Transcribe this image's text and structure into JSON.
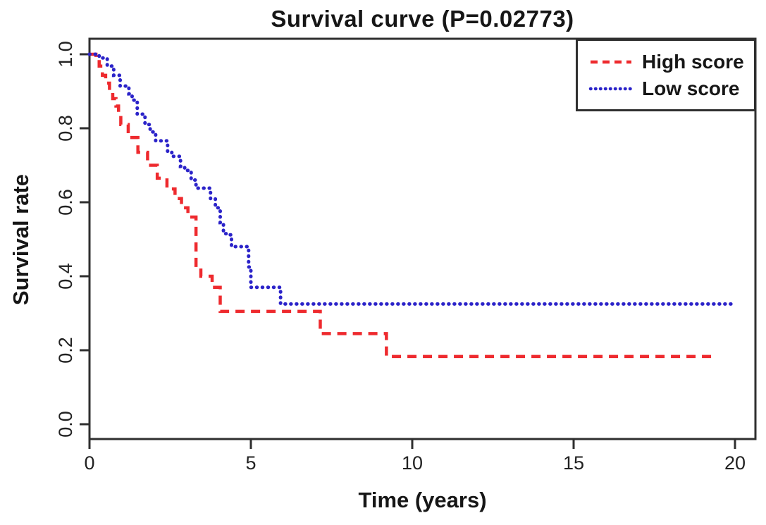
{
  "chart_data": {
    "type": "line",
    "subtype": "kaplan-meier-step-curves",
    "title": "Survival curve (P=0.02773)",
    "p_value": "0.02773",
    "xlabel": "Time (years)",
    "ylabel": "Survival rate",
    "xlim": [
      0,
      20.6
    ],
    "ylim": [
      0,
      1.04
    ],
    "grid": false,
    "legend_position": "top-right",
    "x_ticks": [
      {
        "value": 0,
        "label": "0"
      },
      {
        "value": 5,
        "label": "5"
      },
      {
        "value": 10,
        "label": "10"
      },
      {
        "value": 15,
        "label": "15"
      },
      {
        "value": 20,
        "label": "20"
      }
    ],
    "y_ticks": [
      {
        "value": 0.0,
        "label": "0.0"
      },
      {
        "value": 0.2,
        "label": "0.2"
      },
      {
        "value": 0.4,
        "label": "0.4"
      },
      {
        "value": 0.6,
        "label": "0.6"
      },
      {
        "value": 0.8,
        "label": "0.8"
      },
      {
        "value": 1.0,
        "label": "1.0"
      }
    ],
    "series": [
      {
        "name": "High score",
        "color": "#ee2a2e",
        "line_style": "dashed",
        "end_time": 19.4,
        "points": [
          [
            0,
            1.0
          ],
          [
            0.2,
            0.99
          ],
          [
            0.3,
            0.968
          ],
          [
            0.4,
            0.943
          ],
          [
            0.5,
            0.922
          ],
          [
            0.62,
            0.9
          ],
          [
            0.72,
            0.88
          ],
          [
            0.82,
            0.86
          ],
          [
            0.9,
            0.838
          ],
          [
            0.97,
            0.81
          ],
          [
            1.2,
            0.775
          ],
          [
            1.5,
            0.735
          ],
          [
            1.8,
            0.7
          ],
          [
            2.1,
            0.665
          ],
          [
            2.4,
            0.636
          ],
          [
            2.65,
            0.61
          ],
          [
            2.85,
            0.585
          ],
          [
            3.05,
            0.56
          ],
          [
            3.3,
            0.425
          ],
          [
            3.45,
            0.4
          ],
          [
            3.8,
            0.37
          ],
          [
            4.05,
            0.305
          ],
          [
            7.15,
            0.245
          ],
          [
            9.2,
            0.183
          ]
        ]
      },
      {
        "name": "Low score",
        "color": "#2b23c9",
        "line_style": "dotted",
        "end_time": 19.9,
        "points": [
          [
            0,
            1.0
          ],
          [
            0.3,
            0.99
          ],
          [
            0.55,
            0.968
          ],
          [
            0.75,
            0.943
          ],
          [
            0.95,
            0.914
          ],
          [
            1.22,
            0.893
          ],
          [
            1.32,
            0.876
          ],
          [
            1.48,
            0.838
          ],
          [
            1.72,
            0.81
          ],
          [
            1.88,
            0.79
          ],
          [
            2.05,
            0.766
          ],
          [
            2.42,
            0.735
          ],
          [
            2.55,
            0.724
          ],
          [
            2.82,
            0.697
          ],
          [
            2.95,
            0.686
          ],
          [
            3.15,
            0.66
          ],
          [
            3.3,
            0.638
          ],
          [
            3.75,
            0.61
          ],
          [
            3.9,
            0.585
          ],
          [
            4.05,
            0.545
          ],
          [
            4.15,
            0.515
          ],
          [
            4.28,
            0.512
          ],
          [
            4.4,
            0.48
          ],
          [
            4.93,
            0.425
          ],
          [
            5.0,
            0.37
          ],
          [
            5.92,
            0.325
          ]
        ]
      }
    ]
  }
}
